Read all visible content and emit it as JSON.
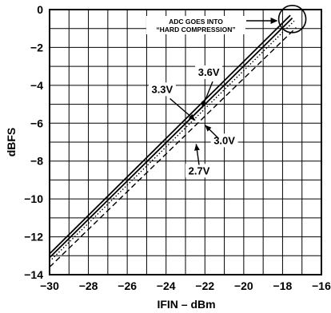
{
  "chart_data": {
    "type": "line",
    "title": "",
    "xlabel": "IFIN – dBm",
    "ylabel": "dBFS",
    "xlim": [
      -30,
      -16
    ],
    "ylim": [
      -14,
      0
    ],
    "x_ticks": [
      -30,
      -28,
      -26,
      -24,
      -22,
      -20,
      -18,
      -16
    ],
    "y_ticks": [
      0,
      -2,
      -4,
      -6,
      -8,
      -10,
      -12,
      -14
    ],
    "x_tick_labels": [
      "−30",
      "−28",
      "−26",
      "−24",
      "−22",
      "−20",
      "−18",
      "−16"
    ],
    "y_tick_labels": [
      "0",
      "−2",
      "−4",
      "−6",
      "−8",
      "−10",
      "−12",
      "−14"
    ],
    "grid": true,
    "series": [
      {
        "name": "3.6V",
        "style": "solid",
        "x": [
          -30,
          -17.6
        ],
        "y": [
          -12.9,
          -0.3
        ]
      },
      {
        "name": "3.3V",
        "style": "solid",
        "x": [
          -30,
          -17.5
        ],
        "y": [
          -13.1,
          -0.45
        ]
      },
      {
        "name": "3.0V",
        "style": "dotted",
        "x": [
          -30,
          -17.4
        ],
        "y": [
          -13.3,
          -0.6
        ]
      },
      {
        "name": "2.7V",
        "style": "dashed",
        "x": [
          -30,
          -17.3
        ],
        "y": [
          -13.6,
          -0.95
        ]
      }
    ],
    "annotations": {
      "compression_line1": "ADC GOES INTO",
      "compression_line2": "“HARD COMPRESSION”",
      "labels": [
        {
          "text": "3.6V",
          "x": -21.8,
          "y": -3.5
        },
        {
          "text": "3.3V",
          "x": -24.2,
          "y": -4.4
        },
        {
          "text": "3.0V",
          "x": -21.0,
          "y": -7.1
        },
        {
          "text": "2.7V",
          "x": -22.3,
          "y": -8.7
        }
      ],
      "circle_center": {
        "x": -17.5,
        "y": -0.5
      }
    }
  }
}
